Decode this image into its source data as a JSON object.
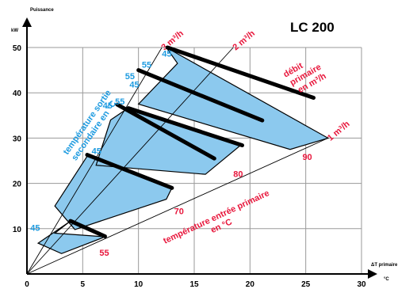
{
  "chart_data": {
    "type": "area",
    "title": "LC 200",
    "ylabel_top": "Puissance",
    "yunit": "kW",
    "xlabel": "ΔT primaire",
    "xunit": "°C",
    "xlim": [
      0,
      30
    ],
    "ylim": [
      0,
      50
    ],
    "xticks": [
      "0",
      "5",
      "10",
      "15",
      "20",
      "25",
      "30"
    ],
    "yticks": [
      "10",
      "20",
      "30",
      "40",
      "50"
    ],
    "grid": true,
    "flow_lines": [
      {
        "label": "3 m³/h",
        "end": [
          12.1,
          50
        ]
      },
      {
        "label": "2 m³/h",
        "end": [
          18.5,
          50
        ]
      },
      {
        "label": "1 m³/h",
        "end": [
          27,
          30
        ]
      }
    ],
    "bands": [
      {
        "points": [
          [
            3.8,
            11.5
          ],
          [
            1.0,
            6.8
          ],
          [
            3.1,
            4.5
          ],
          [
            7.0,
            8.2
          ],
          [
            2.5,
            9.0
          ]
        ]
      },
      {
        "points": [
          [
            5.4,
            26
          ],
          [
            2.5,
            15.0
          ],
          [
            4.3,
            9.8
          ],
          [
            12.5,
            16.5
          ],
          [
            13.0,
            19.0
          ]
        ]
      },
      {
        "points": [
          [
            9.0,
            36.5
          ],
          [
            7.5,
            34.0
          ],
          [
            6.2,
            24.0
          ],
          [
            16.0,
            22.0
          ],
          [
            19.2,
            28.5
          ]
        ]
      },
      {
        "points": [
          [
            12.5,
            50.0
          ],
          [
            13.5,
            46.5
          ],
          [
            10.0,
            37.5
          ],
          [
            23.6,
            27.5
          ],
          [
            27.0,
            30.0
          ]
        ]
      }
    ],
    "bars": [
      {
        "from": [
          3.9,
          11.7
        ],
        "to": [
          7.0,
          8.3
        ]
      },
      {
        "from": [
          5.4,
          26.3
        ],
        "to": [
          13.0,
          19.0
        ]
      },
      {
        "from": [
          9.1,
          36.6
        ],
        "to": [
          19.3,
          28.4
        ]
      },
      {
        "from": [
          8.1,
          37.4
        ],
        "to": [
          16.8,
          25.5
        ]
      },
      {
        "from": [
          10.0,
          45.0
        ],
        "to": [
          21.1,
          33.9
        ]
      },
      {
        "from": [
          12.6,
          50.0
        ],
        "to": [
          25.7,
          38.9
        ]
      }
    ],
    "secondary_temp_labels": [
      {
        "text": "45",
        "at": [
          12.1,
          48
        ]
      },
      {
        "text": "55",
        "at": [
          10.3,
          45.5
        ]
      },
      {
        "text": "45",
        "at": [
          9.2,
          41.2
        ]
      },
      {
        "text": "55",
        "at": [
          8.8,
          43
        ]
      },
      {
        "text": "45",
        "at": [
          6.8,
          36.5
        ]
      },
      {
        "text": "55",
        "at": [
          7.9,
          37.4
        ]
      },
      {
        "text": "45",
        "at": [
          5.8,
          26.5
        ]
      },
      {
        "text": "45",
        "at": [
          0.3,
          9.5
        ]
      }
    ],
    "primary_temp_labels": [
      {
        "text": "55",
        "at": [
          6.5,
          4.0
        ]
      },
      {
        "text": "70",
        "at": [
          13.2,
          13.2
        ]
      },
      {
        "text": "80",
        "at": [
          18.5,
          21.4
        ]
      },
      {
        "text": "90",
        "at": [
          24.7,
          25.2
        ]
      }
    ],
    "annotations": [
      {
        "text": "température sortie secondaire en °C",
        "color": "blue"
      },
      {
        "text": "température entrée primaire en °C",
        "color": "red"
      },
      {
        "text": "débit primaire en m³/h",
        "color": "red"
      }
    ],
    "annotation_lines": {
      "sec": [
        "température sortie",
        "secondaire en °C"
      ],
      "pri": [
        "température entrée primaire",
        "en °C"
      ],
      "debit": [
        "débit",
        "primaire",
        "en m³/h"
      ]
    }
  }
}
